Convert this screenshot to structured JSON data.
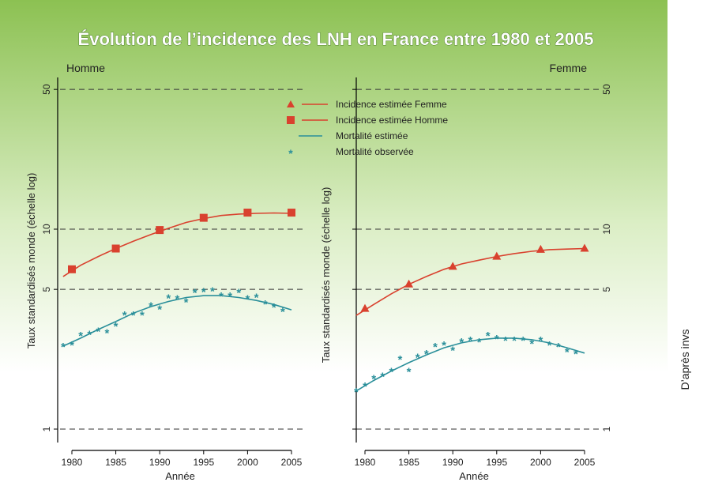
{
  "title": "Évolution de l’incidence des LNH en France entre 1980 et 2005",
  "source_note": "D’après invs",
  "colors": {
    "background_top": "#8cc152",
    "background_bottom": "#ffffff",
    "title_text": "#ffffff",
    "title_stroke": "#3a6b1a",
    "incidence": "#d9412e",
    "mortality": "#2a8f9a",
    "dashed_grid": "#333333"
  },
  "legend": {
    "placement": "top-center",
    "items": [
      {
        "label": "Incidence estimée Femme",
        "marker": "triangle",
        "color": "#d9412e"
      },
      {
        "label": "Incidence estimée Homme",
        "marker": "square",
        "color": "#d9412e"
      },
      {
        "label": "Mortalité estimée",
        "marker": "line",
        "color": "#2a8f9a"
      },
      {
        "label": "Mortalité observée",
        "marker": "asterisk",
        "color": "#2a8f9a"
      }
    ]
  },
  "chart_data": [
    {
      "type": "line",
      "panel_label": "Homme",
      "xlabel": "Année",
      "ylabel": "Taux standardisés monde (échelle log)",
      "yscale": "log",
      "xlim": [
        1979,
        2006
      ],
      "ylim": [
        0.9,
        60
      ],
      "x_ticks": [
        1980,
        1985,
        1990,
        1995,
        2000,
        2005
      ],
      "y_ticks": [
        1,
        5,
        10,
        50
      ],
      "grid": "dashed horizontal at y ticks",
      "series": [
        {
          "name": "Incidence estimée Homme",
          "kind": "incidence",
          "marker": "square",
          "markers": {
            "x": [
              1980,
              1985,
              1990,
              1995,
              2000,
              2005
            ],
            "y": [
              6.3,
              8.0,
              9.9,
              11.4,
              12.1,
              12.1
            ]
          },
          "curve": {
            "x": [
              1979,
              1981,
              1983,
              1985,
              1987,
              1989,
              1991,
              1993,
              1995,
              1997,
              1999,
              2001,
              2003,
              2005
            ],
            "y": [
              5.8,
              6.6,
              7.3,
              8.0,
              8.7,
              9.4,
              10.1,
              10.8,
              11.3,
              11.7,
              11.9,
              12.0,
              12.05,
              12.0
            ]
          }
        },
        {
          "name": "Mortalité estimée",
          "kind": "mortality_estimated",
          "curve": {
            "x": [
              1979,
              1981,
              1983,
              1985,
              1987,
              1989,
              1991,
              1993,
              1995,
              1997,
              1999,
              2001,
              2003,
              2005
            ],
            "y": [
              2.6,
              2.85,
              3.15,
              3.45,
              3.8,
              4.1,
              4.35,
              4.55,
              4.65,
              4.65,
              4.55,
              4.4,
              4.2,
              3.95
            ]
          }
        },
        {
          "name": "Mortalité observée",
          "kind": "mortality_observed",
          "marker": "asterisk",
          "points": {
            "x": [
              1979,
              1980,
              1981,
              1982,
              1983,
              1984,
              1985,
              1986,
              1987,
              1988,
              1989,
              1990,
              1991,
              1992,
              1993,
              1994,
              1995,
              1996,
              1997,
              1998,
              1999,
              2000,
              2001,
              2002,
              2003,
              2004
            ],
            "y": [
              2.6,
              2.65,
              2.95,
              3.0,
              3.1,
              3.05,
              3.3,
              3.75,
              3.75,
              3.75,
              4.15,
              4.0,
              4.55,
              4.5,
              4.35,
              4.85,
              4.9,
              4.95,
              4.65,
              4.65,
              4.85,
              4.5,
              4.6,
              4.25,
              4.1,
              3.9
            ]
          }
        }
      ]
    },
    {
      "type": "line",
      "panel_label": "Femme",
      "xlabel": "Année",
      "ylabel": "Taux standardisés monde (échelle log)",
      "yscale": "log",
      "xlim": [
        1979,
        2006
      ],
      "ylim": [
        0.9,
        60
      ],
      "x_ticks": [
        1980,
        1985,
        1990,
        1995,
        2000,
        2005
      ],
      "y_ticks": [
        1,
        5,
        10,
        50
      ],
      "grid": "dashed horizontal at y ticks",
      "series": [
        {
          "name": "Incidence estimée Femme",
          "kind": "incidence",
          "marker": "triangle",
          "markers": {
            "x": [
              1980,
              1985,
              1990,
              1995,
              2000,
              2005
            ],
            "y": [
              4.0,
              5.3,
              6.5,
              7.3,
              7.9,
              8.0
            ]
          },
          "curve": {
            "x": [
              1979,
              1981,
              1983,
              1985,
              1987,
              1989,
              1991,
              1993,
              1995,
              1997,
              1999,
              2001,
              2003,
              2005
            ],
            "y": [
              3.7,
              4.2,
              4.75,
              5.3,
              5.8,
              6.3,
              6.7,
              7.0,
              7.3,
              7.55,
              7.75,
              7.9,
              7.95,
              8.0
            ]
          }
        },
        {
          "name": "Mortalité estimée",
          "kind": "mortality_estimated",
          "curve": {
            "x": [
              1979,
              1981,
              1983,
              1985,
              1987,
              1989,
              1991,
              1993,
              1995,
              1997,
              1999,
              2001,
              2003,
              2005
            ],
            "y": [
              1.55,
              1.75,
              1.95,
              2.15,
              2.35,
              2.55,
              2.7,
              2.8,
              2.85,
              2.85,
              2.8,
              2.7,
              2.55,
              2.4
            ]
          }
        },
        {
          "name": "Mortalité observée",
          "kind": "mortality_observed",
          "marker": "asterisk",
          "points": {
            "x": [
              1979,
              1980,
              1981,
              1982,
              1983,
              1984,
              1985,
              1986,
              1987,
              1988,
              1989,
              1990,
              1991,
              1992,
              1993,
              1994,
              1995,
              1996,
              1997,
              1998,
              1999,
              2000,
              2001,
              2002,
              2003,
              2004
            ],
            "y": [
              1.55,
              1.65,
              1.8,
              1.85,
              1.95,
              2.25,
              1.95,
              2.3,
              2.4,
              2.6,
              2.65,
              2.5,
              2.75,
              2.8,
              2.75,
              2.95,
              2.85,
              2.8,
              2.8,
              2.8,
              2.7,
              2.8,
              2.65,
              2.6,
              2.45,
              2.4
            ]
          }
        }
      ]
    }
  ]
}
